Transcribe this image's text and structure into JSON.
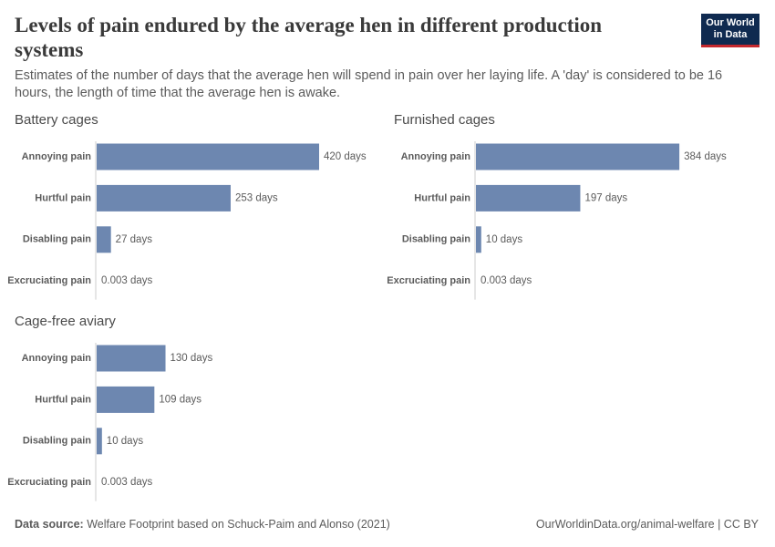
{
  "title": "Levels of pain endured by the average hen in different production systems",
  "subtitle": "Estimates of the number of days that the average hen will spend in pain over her laying life. A 'day' is considered to be 16 hours, the length of time that the average hen is awake.",
  "logo": [
    "Our World",
    "in Data"
  ],
  "source_label": "Data source:",
  "source": "Welfare Footprint based on Schuck-Paim and Alonso (2021)",
  "url": "OurWorldinData.org/animal-welfare | CC BY",
  "chart_data": [
    {
      "type": "bar",
      "title": "Battery cages",
      "categories": [
        "Annoying pain",
        "Hurtful pain",
        "Disabling pain",
        "Excruciating pain"
      ],
      "values": [
        420,
        253,
        27,
        0.003
      ],
      "value_labels": [
        "420 days",
        "253 days",
        "27 days",
        "0.003 days"
      ],
      "color": "#6d87b0"
    },
    {
      "type": "bar",
      "title": "Furnished cages",
      "categories": [
        "Annoying pain",
        "Hurtful pain",
        "Disabling pain",
        "Excruciating pain"
      ],
      "values": [
        384,
        197,
        10,
        0.003
      ],
      "value_labels": [
        "384 days",
        "197 days",
        "10 days",
        "0.003 days"
      ],
      "color": "#6d87b0"
    },
    {
      "type": "bar",
      "title": "Cage-free aviary",
      "categories": [
        "Annoying pain",
        "Hurtful pain",
        "Disabling pain",
        "Excruciating pain"
      ],
      "values": [
        130,
        109,
        10,
        0.003
      ],
      "value_labels": [
        "130 days",
        "109 days",
        "10 days",
        "0.003 days"
      ],
      "color": "#6d87b0"
    }
  ]
}
